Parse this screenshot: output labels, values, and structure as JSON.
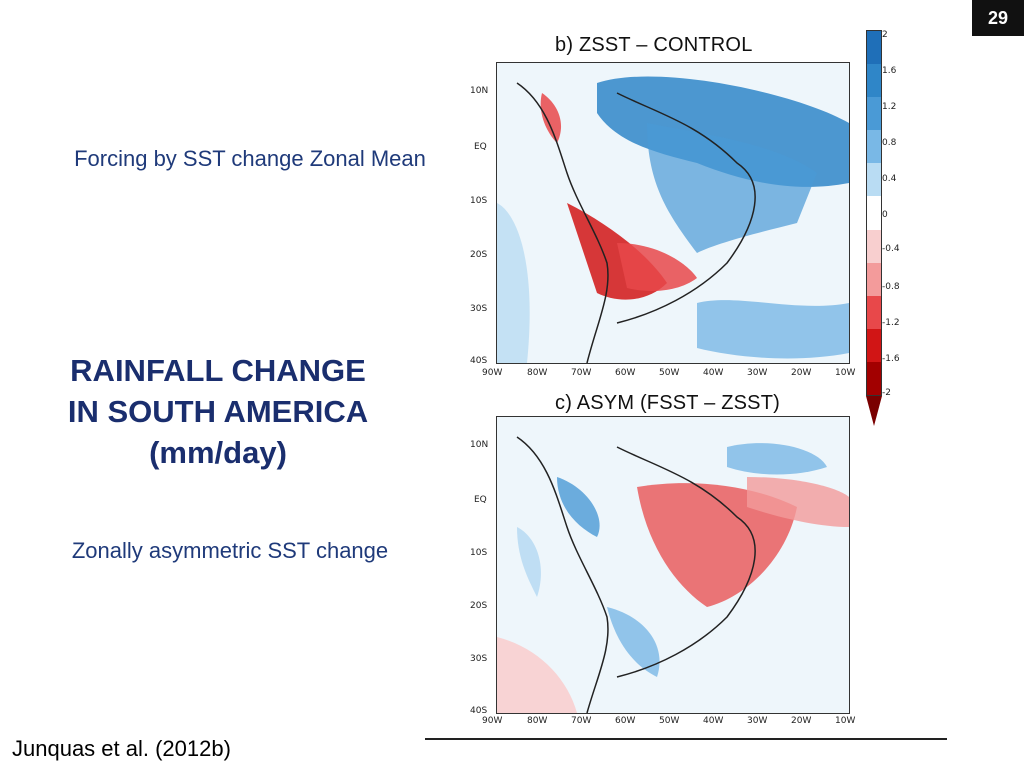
{
  "slide": {
    "number": "29",
    "forcing_label": "Forcing by SST change Zonal Mean",
    "main_title_lines": [
      "RAINFALL  CHANGE",
      "IN SOUTH AMERICA",
      "(mm/day)"
    ],
    "zonal_label": "Zonally asymmetric SST change",
    "citation": "Junquas et al. (2012b)"
  },
  "maps": [
    {
      "id": "b",
      "title": "b) ZSST – CONTROL",
      "lat_ticks": [
        "10N",
        "EQ",
        "10S",
        "20S",
        "30S",
        "40S"
      ],
      "lon_ticks": [
        "90W",
        "80W",
        "70W",
        "60W",
        "50W",
        "40W",
        "30W",
        "20W",
        "10W"
      ]
    },
    {
      "id": "c",
      "title": "c) ASYM (FSST – ZSST)",
      "lat_ticks": [
        "10N",
        "EQ",
        "10S",
        "20S",
        "30S",
        "40S"
      ],
      "lon_ticks": [
        "90W",
        "80W",
        "70W",
        "60W",
        "50W",
        "40W",
        "30W",
        "20W",
        "10W"
      ]
    }
  ],
  "colorbar": {
    "labels": [
      "2",
      "1.6",
      "1.2",
      "0.8",
      "0.4",
      "0",
      "-0.4",
      "-0.8",
      "-1.2",
      "-1.6",
      "-2"
    ],
    "colors": [
      "#1f6fb8",
      "#2f86c8",
      "#4a9ad6",
      "#79b8e6",
      "#b9dcf3",
      "#ffffff",
      "#f8cfcf",
      "#f39b9b",
      "#e8484a",
      "#d11515",
      "#a20000"
    ]
  },
  "colors": {
    "title": "#1a2e6e",
    "caption": "#1f3a7a",
    "ocean": "#eef6fb"
  }
}
